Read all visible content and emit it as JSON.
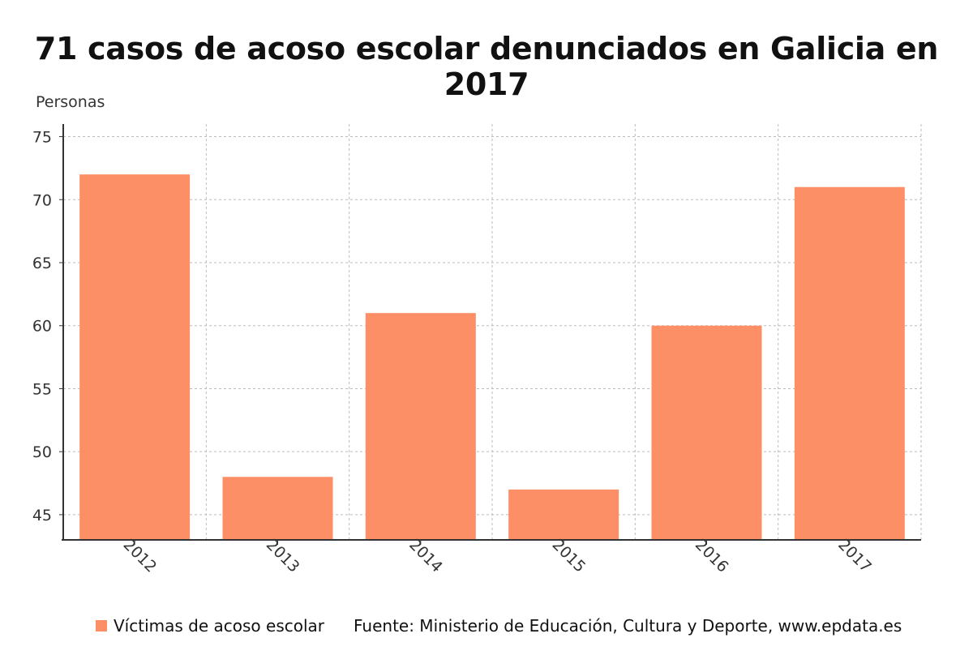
{
  "title": "71 casos de acoso escolar denunciados en Galicia en 2017",
  "ylabel": "Personas",
  "source": "Fuente: Ministerio de Educación, Cultura y Deporte, www.epdata.es",
  "colors": {
    "bar": "#FC8F66",
    "grid": "#bbbbbb",
    "axis": "#333333"
  },
  "chart_data": {
    "type": "bar",
    "title": "71 casos de acoso escolar denunciados en Galicia en 2017",
    "xlabel": "",
    "ylabel": "Personas",
    "categories": [
      "2012",
      "2013",
      "2014",
      "2015",
      "2016",
      "2017"
    ],
    "series": [
      {
        "name": "Víctimas de acoso escolar",
        "values": [
          72,
          48,
          61,
          47,
          60,
          71
        ]
      }
    ],
    "ylim": [
      43,
      76
    ],
    "yticks": [
      45,
      50,
      55,
      60,
      65,
      70,
      75
    ],
    "grid": true,
    "legend_position": "bottom-left"
  }
}
